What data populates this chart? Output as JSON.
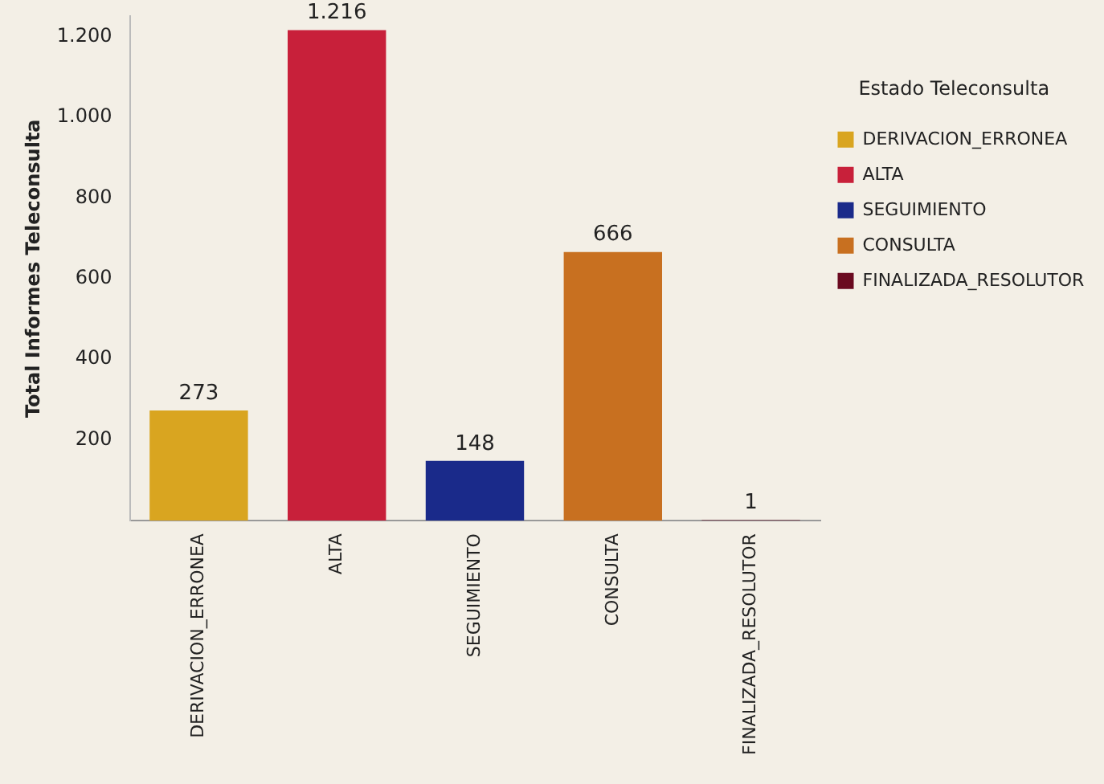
{
  "chart_data": {
    "type": "bar",
    "ylabel": "Total Informes Teleconsulta",
    "legend_title": "Estado Teleconsulta",
    "legend": "right",
    "stacked": true,
    "categories": [
      "DERIVACION_ERRONEA",
      "ALTA",
      "SEGUIMIENTO",
      "CONSULTA",
      "FINALIZADA_RESOLUTOR"
    ],
    "series": [
      {
        "name": "DERIVACION_ERRONEA",
        "color": "#d9a520",
        "values": [
          273,
          null,
          null,
          null,
          null
        ],
        "value_labels": [
          "273",
          null,
          null,
          null,
          null
        ]
      },
      {
        "name": "ALTA",
        "color": "#c8203a",
        "values": [
          null,
          1216,
          null,
          null,
          null
        ],
        "value_labels": [
          null,
          "1.216",
          null,
          null,
          null
        ]
      },
      {
        "name": "SEGUIMIENTO",
        "color": "#1a2a8a",
        "values": [
          null,
          null,
          148,
          null,
          null
        ],
        "value_labels": [
          null,
          null,
          "148",
          null,
          null
        ]
      },
      {
        "name": "CONSULTA",
        "color": "#c87020",
        "values": [
          null,
          null,
          null,
          666,
          null
        ],
        "value_labels": [
          null,
          null,
          null,
          "666",
          null
        ]
      },
      {
        "name": "FINALIZADA_RESOLUTOR",
        "color": "#6a0a20",
        "values": [
          null,
          null,
          null,
          null,
          1
        ],
        "value_labels": [
          null,
          null,
          null,
          null,
          "1"
        ]
      }
    ],
    "ylim": [
      0,
      1250
    ],
    "yticks": [
      200,
      400,
      600,
      800,
      {
        "value": 1000,
        "label": "1.000"
      },
      {
        "value": 1200,
        "label": "1.200"
      }
    ],
    "grid": false
  }
}
